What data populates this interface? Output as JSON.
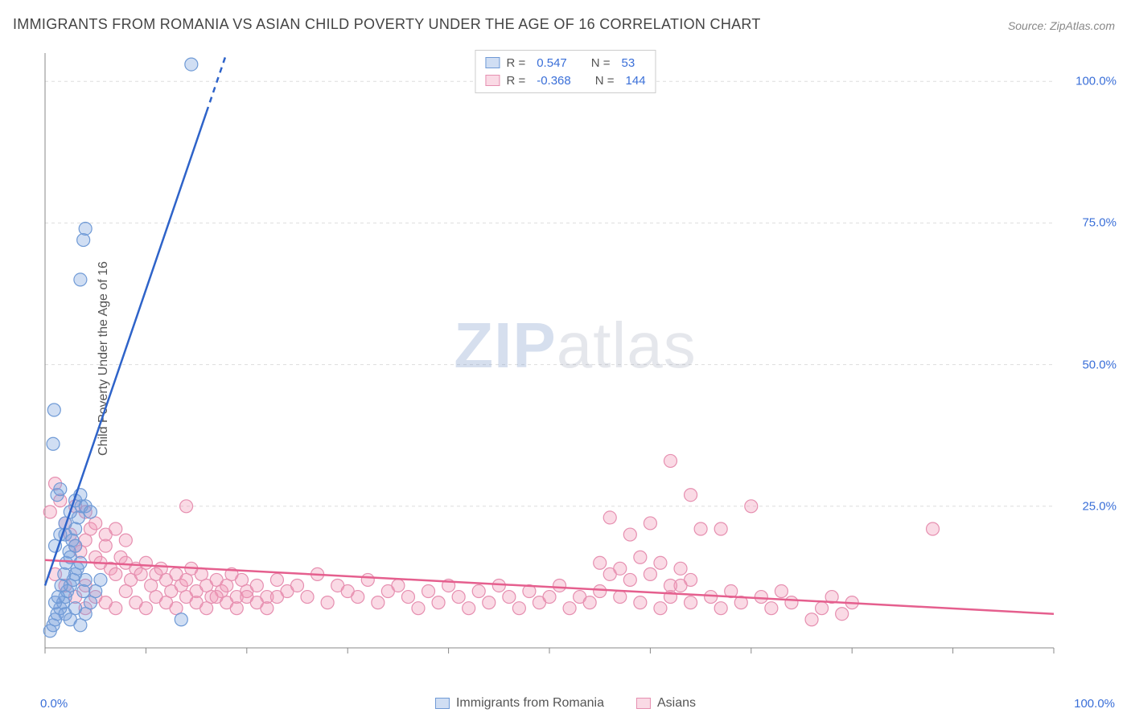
{
  "title": "IMMIGRANTS FROM ROMANIA VS ASIAN CHILD POVERTY UNDER THE AGE OF 16 CORRELATION CHART",
  "source": "Source: ZipAtlas.com",
  "yaxis_label": "Child Poverty Under the Age of 16",
  "watermark": {
    "zip": "ZIP",
    "atlas": "atlas"
  },
  "chart": {
    "type": "scatter-with-regression",
    "background_color": "#ffffff",
    "grid_color": "#dddddd",
    "grid_dash": "4,4",
    "axis_color": "#888888",
    "tick_color": "#888888",
    "marker_radius": 8,
    "marker_stroke_width": 1.2,
    "line_width": 2.5,
    "xlim": [
      0,
      100
    ],
    "ylim": [
      0,
      105
    ],
    "xticks": [
      0,
      10,
      20,
      30,
      40,
      50,
      60,
      70,
      80,
      90,
      100
    ],
    "yticks": [
      25,
      50,
      75,
      100
    ],
    "xtick_labels": {
      "0": "0.0%",
      "100": "100.0%"
    },
    "ytick_labels": {
      "25": "25.0%",
      "50": "50.0%",
      "75": "75.0%",
      "100": "100.0%"
    },
    "label_color": "#3a6fd8",
    "label_fontsize": 15,
    "title_color": "#444444",
    "title_fontsize": 18
  },
  "series": {
    "romania": {
      "label": "Immigrants from Romania",
      "fill": "rgba(120,160,220,0.35)",
      "stroke": "#6f9ad6",
      "line_color": "#2e63c9",
      "R": "0.547",
      "N": "53",
      "regression": {
        "x1": 0,
        "y1": 11,
        "x2": 18,
        "y2": 105,
        "dash_from_x": 16
      },
      "points": [
        [
          0.5,
          3
        ],
        [
          0.8,
          4
        ],
        [
          1.0,
          5
        ],
        [
          1.2,
          6
        ],
        [
          1.5,
          7
        ],
        [
          1.8,
          8
        ],
        [
          2.0,
          9
        ],
        [
          2.2,
          10
        ],
        [
          2.5,
          11
        ],
        [
          2.8,
          12
        ],
        [
          3.0,
          13
        ],
        [
          3.2,
          14
        ],
        [
          3.5,
          15
        ],
        [
          3.8,
          10
        ],
        [
          4.0,
          12
        ],
        [
          1.0,
          8
        ],
        [
          1.3,
          9
        ],
        [
          1.6,
          11
        ],
        [
          1.9,
          13
        ],
        [
          2.1,
          15
        ],
        [
          2.4,
          17
        ],
        [
          2.7,
          19
        ],
        [
          3.0,
          21
        ],
        [
          3.3,
          23
        ],
        [
          3.6,
          25
        ],
        [
          2.0,
          6
        ],
        [
          2.5,
          5
        ],
        [
          3.0,
          7
        ],
        [
          3.5,
          4
        ],
        [
          4.0,
          6
        ],
        [
          4.5,
          8
        ],
        [
          5.0,
          10
        ],
        [
          5.5,
          12
        ],
        [
          1.0,
          18
        ],
        [
          1.5,
          20
        ],
        [
          2.0,
          22
        ],
        [
          2.5,
          24
        ],
        [
          3.0,
          26
        ],
        [
          1.2,
          27
        ],
        [
          1.5,
          28
        ],
        [
          2.0,
          20
        ],
        [
          2.5,
          16
        ],
        [
          3.0,
          18
        ],
        [
          0.8,
          36
        ],
        [
          0.9,
          42
        ],
        [
          3.5,
          65
        ],
        [
          3.8,
          72
        ],
        [
          4.0,
          74
        ],
        [
          14.5,
          103
        ],
        [
          13.5,
          5
        ],
        [
          3.5,
          27
        ],
        [
          4.0,
          25
        ],
        [
          4.5,
          24
        ]
      ]
    },
    "asians": {
      "label": "Asians",
      "fill": "rgba(240,150,180,0.35)",
      "stroke": "#e68fb0",
      "line_color": "#e55f8e",
      "R": "-0.368",
      "N": "144",
      "regression": {
        "x1": 0,
        "y1": 15.5,
        "x2": 100,
        "y2": 6
      },
      "points": [
        [
          0.5,
          24
        ],
        [
          1,
          29
        ],
        [
          1.5,
          26
        ],
        [
          2,
          22
        ],
        [
          2.5,
          20
        ],
        [
          3,
          18
        ],
        [
          3.5,
          17
        ],
        [
          4,
          19
        ],
        [
          4.5,
          21
        ],
        [
          5,
          16
        ],
        [
          5.5,
          15
        ],
        [
          6,
          18
        ],
        [
          6.5,
          14
        ],
        [
          7,
          13
        ],
        [
          7.5,
          16
        ],
        [
          8,
          15
        ],
        [
          8.5,
          12
        ],
        [
          9,
          14
        ],
        [
          9.5,
          13
        ],
        [
          10,
          15
        ],
        [
          10.5,
          11
        ],
        [
          11,
          13
        ],
        [
          11.5,
          14
        ],
        [
          12,
          12
        ],
        [
          12.5,
          10
        ],
        [
          13,
          13
        ],
        [
          13.5,
          11
        ],
        [
          14,
          12
        ],
        [
          14.5,
          14
        ],
        [
          15,
          10
        ],
        [
          15.5,
          13
        ],
        [
          16,
          11
        ],
        [
          16.5,
          9
        ],
        [
          17,
          12
        ],
        [
          17.5,
          10
        ],
        [
          18,
          11
        ],
        [
          18.5,
          13
        ],
        [
          19,
          9
        ],
        [
          19.5,
          12
        ],
        [
          20,
          10
        ],
        [
          21,
          11
        ],
        [
          22,
          9
        ],
        [
          23,
          12
        ],
        [
          24,
          10
        ],
        [
          25,
          11
        ],
        [
          26,
          9
        ],
        [
          27,
          13
        ],
        [
          28,
          8
        ],
        [
          29,
          11
        ],
        [
          30,
          10
        ],
        [
          31,
          9
        ],
        [
          32,
          12
        ],
        [
          33,
          8
        ],
        [
          34,
          10
        ],
        [
          35,
          11
        ],
        [
          36,
          9
        ],
        [
          37,
          7
        ],
        [
          38,
          10
        ],
        [
          39,
          8
        ],
        [
          40,
          11
        ],
        [
          41,
          9
        ],
        [
          42,
          7
        ],
        [
          43,
          10
        ],
        [
          44,
          8
        ],
        [
          45,
          11
        ],
        [
          46,
          9
        ],
        [
          47,
          7
        ],
        [
          48,
          10
        ],
        [
          49,
          8
        ],
        [
          50,
          9
        ],
        [
          51,
          11
        ],
        [
          52,
          7
        ],
        [
          53,
          9
        ],
        [
          54,
          8
        ],
        [
          55,
          10
        ],
        [
          56,
          23
        ],
        [
          57,
          9
        ],
        [
          58,
          20
        ],
        [
          59,
          8
        ],
        [
          60,
          22
        ],
        [
          61,
          7
        ],
        [
          62,
          9
        ],
        [
          63,
          11
        ],
        [
          64,
          8
        ],
        [
          65,
          21
        ],
        [
          66,
          9
        ],
        [
          67,
          7
        ],
        [
          68,
          10
        ],
        [
          69,
          8
        ],
        [
          70,
          25
        ],
        [
          71,
          9
        ],
        [
          72,
          7
        ],
        [
          73,
          10
        ],
        [
          74,
          8
        ],
        [
          3,
          25
        ],
        [
          4,
          24
        ],
        [
          5,
          22
        ],
        [
          6,
          20
        ],
        [
          7,
          21
        ],
        [
          8,
          19
        ],
        [
          14,
          25
        ],
        [
          55,
          15
        ],
        [
          56,
          13
        ],
        [
          57,
          14
        ],
        [
          58,
          12
        ],
        [
          59,
          16
        ],
        [
          60,
          13
        ],
        [
          61,
          15
        ],
        [
          62,
          11
        ],
        [
          63,
          14
        ],
        [
          64,
          12
        ],
        [
          76,
          5
        ],
        [
          77,
          7
        ],
        [
          78,
          9
        ],
        [
          79,
          6
        ],
        [
          80,
          8
        ],
        [
          62,
          33
        ],
        [
          64,
          27
        ],
        [
          67,
          21
        ],
        [
          88,
          21
        ],
        [
          4,
          11
        ],
        [
          5,
          9
        ],
        [
          6,
          8
        ],
        [
          7,
          7
        ],
        [
          8,
          10
        ],
        [
          9,
          8
        ],
        [
          10,
          7
        ],
        [
          11,
          9
        ],
        [
          12,
          8
        ],
        [
          13,
          7
        ],
        [
          14,
          9
        ],
        [
          15,
          8
        ],
        [
          16,
          7
        ],
        [
          17,
          9
        ],
        [
          18,
          8
        ],
        [
          19,
          7
        ],
        [
          20,
          9
        ],
        [
          21,
          8
        ],
        [
          22,
          7
        ],
        [
          23,
          9
        ],
        [
          1,
          13
        ],
        [
          2,
          11
        ],
        [
          3,
          9
        ],
        [
          4,
          7
        ]
      ]
    }
  },
  "legend_top": {
    "rows": [
      {
        "series": "romania",
        "R_label": "R =",
        "N_label": "N ="
      },
      {
        "series": "asians",
        "R_label": "R =",
        "N_label": "N ="
      }
    ]
  },
  "legend_bottom": [
    {
      "series": "romania"
    },
    {
      "series": "asians"
    }
  ]
}
